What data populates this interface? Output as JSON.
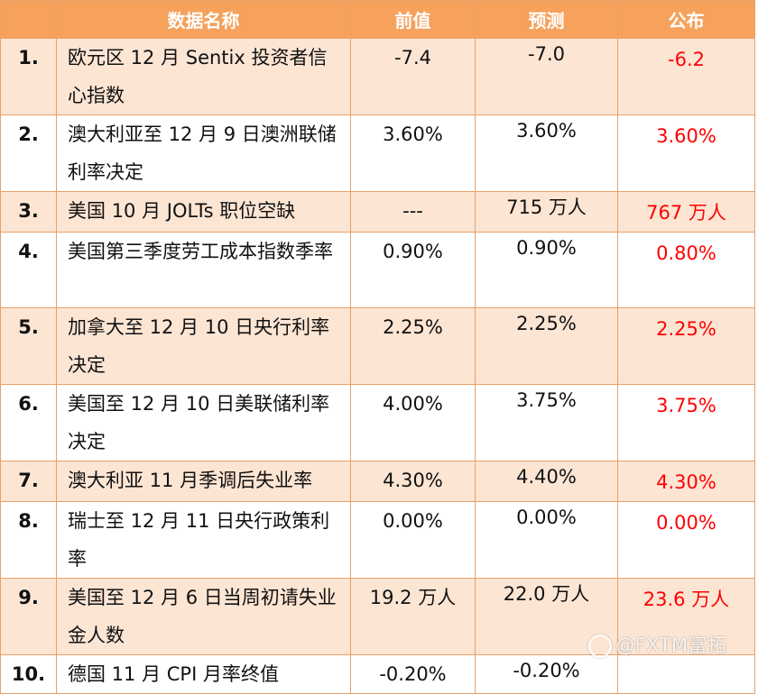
{
  "header": {
    "col_name": "数据名称",
    "col_prev": "前值",
    "col_forecast": "预测",
    "col_actual": "公布"
  },
  "rows": [
    {
      "idx": "1.",
      "name": "欧元区 12 月 Sentix 投资者信心指数",
      "prev": "-7.4",
      "forecast": "-7.0",
      "actual": "-6.2"
    },
    {
      "idx": "2.",
      "name": "澳大利亚至 12 月 9 日澳洲联储利率决定",
      "prev": "3.60%",
      "forecast": "3.60%",
      "actual": "3.60%"
    },
    {
      "idx": "3.",
      "name": "美国 10 月 JOLTs 职位空缺",
      "prev": "---",
      "forecast": "715 万人",
      "actual": "767 万人"
    },
    {
      "idx": "4.",
      "name": "美国第三季度劳工成本指数季率",
      "prev": "0.90%",
      "forecast": "0.90%",
      "actual": "0.80%"
    },
    {
      "idx": "5.",
      "name": "加拿大至 12 月 10 日央行利率决定",
      "prev": "2.25%",
      "forecast": "2.25%",
      "actual": "2.25%"
    },
    {
      "idx": "6.",
      "name": "美国至 12 月 10 日美联储利率决定",
      "prev": "4.00%",
      "forecast": "3.75%",
      "actual": "3.75%"
    },
    {
      "idx": "7.",
      "name": "澳大利亚 11 月季调后失业率",
      "prev": "4.30%",
      "forecast": "4.40%",
      "actual": "4.30%"
    },
    {
      "idx": "8.",
      "name": "瑞士至 12 月 11 日央行政策利率",
      "prev": "0.00%",
      "forecast": "0.00%",
      "actual": "0.00%"
    },
    {
      "idx": "9.",
      "name": "美国至 12 月 6 日当周初请失业金人数",
      "prev": "19.2 万人",
      "forecast": "22.0 万人",
      "actual": "23.6 万人"
    },
    {
      "idx": "10.",
      "name": "德国 11 月 CPI 月率终值",
      "prev": "-0.20%",
      "forecast": "-0.20%",
      "actual": ""
    }
  ],
  "watermark": "@FXTM富拓",
  "colors": {
    "header_bg": "#f6a15c",
    "alt_row_bg": "#fce5d3",
    "actual_text": "#ff0000"
  }
}
